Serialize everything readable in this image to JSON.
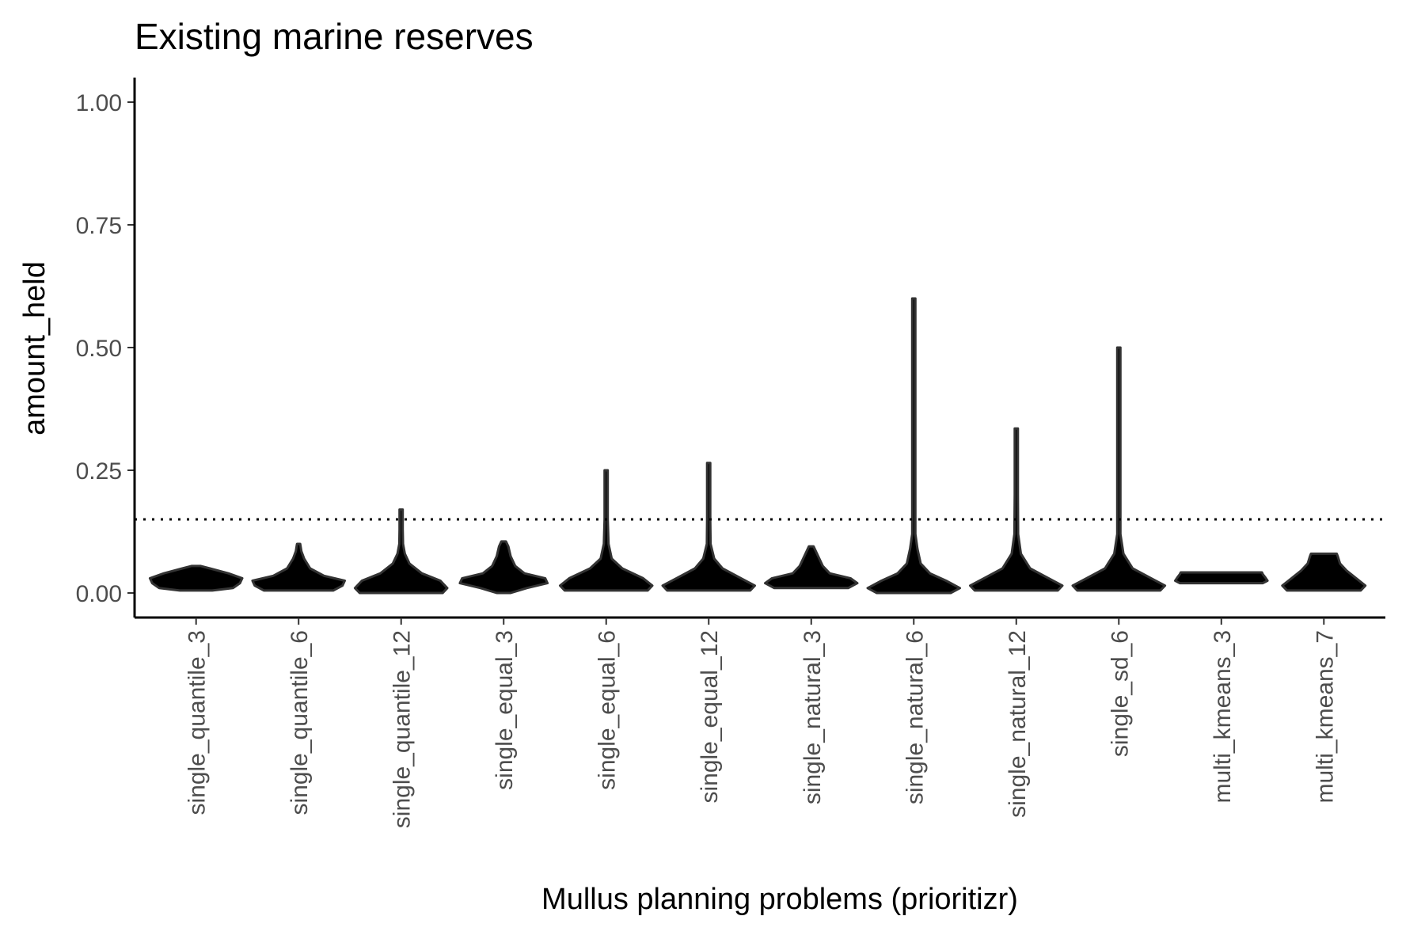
{
  "chart_data": {
    "type": "violin",
    "title": "Existing marine reserves",
    "xlabel": "Mullus planning problems (prioritizr)",
    "ylabel": "amount_held",
    "ylim": [
      -0.05,
      1.05
    ],
    "yticks": [
      0.0,
      0.25,
      0.5,
      0.75,
      1.0
    ],
    "ytick_labels": [
      "0.00",
      "0.25",
      "0.50",
      "0.75",
      "1.00"
    ],
    "reference_line": {
      "y": 0.15,
      "style": "dotted"
    },
    "grid": false,
    "legend": "none",
    "fill_color": "#000000",
    "outline_color": "#333333",
    "categories": [
      "single_quantile_3",
      "single_quantile_6",
      "single_quantile_12",
      "single_equal_3",
      "single_equal_6",
      "single_equal_12",
      "single_natural_3",
      "single_natural_6",
      "single_natural_12",
      "single_sd_6",
      "multi_kmeans_3",
      "multi_kmeans_7"
    ],
    "violins": [
      {
        "category": "single_quantile_3",
        "min": 0.005,
        "max": 0.055,
        "density": [
          [
            0.005,
            0.35
          ],
          [
            0.01,
            0.8
          ],
          [
            0.02,
            0.95
          ],
          [
            0.03,
            1.0
          ],
          [
            0.04,
            0.7
          ],
          [
            0.05,
            0.3
          ],
          [
            0.055,
            0.1
          ]
        ]
      },
      {
        "category": "single_quantile_6",
        "min": 0.005,
        "max": 0.1,
        "density": [
          [
            0.005,
            0.75
          ],
          [
            0.015,
            0.95
          ],
          [
            0.025,
            1.0
          ],
          [
            0.035,
            0.55
          ],
          [
            0.05,
            0.25
          ],
          [
            0.07,
            0.12
          ],
          [
            0.085,
            0.06
          ],
          [
            0.1,
            0.03
          ]
        ]
      },
      {
        "category": "single_quantile_12",
        "min": 0.0,
        "max": 0.17,
        "density": [
          [
            0.0,
            0.9
          ],
          [
            0.01,
            1.0
          ],
          [
            0.025,
            0.85
          ],
          [
            0.04,
            0.45
          ],
          [
            0.06,
            0.18
          ],
          [
            0.08,
            0.08
          ],
          [
            0.1,
            0.04
          ],
          [
            0.13,
            0.02
          ],
          [
            0.17,
            0.01
          ]
        ]
      },
      {
        "category": "single_equal_3",
        "min": 0.0,
        "max": 0.105,
        "density": [
          [
            0.0,
            0.15
          ],
          [
            0.01,
            0.5
          ],
          [
            0.02,
            0.95
          ],
          [
            0.03,
            0.9
          ],
          [
            0.04,
            0.45
          ],
          [
            0.055,
            0.25
          ],
          [
            0.075,
            0.15
          ],
          [
            0.095,
            0.1
          ],
          [
            0.105,
            0.05
          ]
        ]
      },
      {
        "category": "single_equal_6",
        "min": 0.005,
        "max": 0.25,
        "density": [
          [
            0.005,
            0.9
          ],
          [
            0.015,
            1.0
          ],
          [
            0.03,
            0.8
          ],
          [
            0.05,
            0.35
          ],
          [
            0.07,
            0.12
          ],
          [
            0.1,
            0.05
          ],
          [
            0.15,
            0.02
          ],
          [
            0.2,
            0.015
          ],
          [
            0.25,
            0.01
          ]
        ]
      },
      {
        "category": "single_equal_12",
        "min": 0.005,
        "max": 0.265,
        "density": [
          [
            0.005,
            0.9
          ],
          [
            0.015,
            1.0
          ],
          [
            0.03,
            0.7
          ],
          [
            0.05,
            0.3
          ],
          [
            0.07,
            0.12
          ],
          [
            0.1,
            0.04
          ],
          [
            0.15,
            0.02
          ],
          [
            0.22,
            0.012
          ],
          [
            0.265,
            0.01
          ]
        ]
      },
      {
        "category": "single_natural_3",
        "min": 0.01,
        "max": 0.095,
        "density": [
          [
            0.01,
            0.8
          ],
          [
            0.02,
            1.0
          ],
          [
            0.03,
            0.85
          ],
          [
            0.04,
            0.4
          ],
          [
            0.055,
            0.25
          ],
          [
            0.075,
            0.15
          ],
          [
            0.095,
            0.05
          ]
        ]
      },
      {
        "category": "single_natural_6",
        "min": 0.0,
        "max": 0.6,
        "density": [
          [
            0.0,
            0.8
          ],
          [
            0.01,
            1.0
          ],
          [
            0.025,
            0.7
          ],
          [
            0.04,
            0.35
          ],
          [
            0.06,
            0.15
          ],
          [
            0.09,
            0.08
          ],
          [
            0.12,
            0.02
          ],
          [
            0.3,
            0.012
          ],
          [
            0.6,
            0.008
          ]
        ]
      },
      {
        "category": "single_natural_12",
        "min": 0.005,
        "max": 0.335,
        "density": [
          [
            0.005,
            0.9
          ],
          [
            0.015,
            1.0
          ],
          [
            0.03,
            0.7
          ],
          [
            0.05,
            0.3
          ],
          [
            0.08,
            0.1
          ],
          [
            0.12,
            0.04
          ],
          [
            0.2,
            0.015
          ],
          [
            0.335,
            0.01
          ]
        ]
      },
      {
        "category": "single_sd_6",
        "min": 0.005,
        "max": 0.5,
        "density": [
          [
            0.005,
            0.9
          ],
          [
            0.015,
            1.0
          ],
          [
            0.03,
            0.7
          ],
          [
            0.05,
            0.3
          ],
          [
            0.08,
            0.1
          ],
          [
            0.12,
            0.03
          ],
          [
            0.2,
            0.015
          ],
          [
            0.5,
            0.01
          ]
        ]
      },
      {
        "category": "multi_kmeans_3",
        "min": 0.02,
        "max": 0.042,
        "density": [
          [
            0.02,
            0.9
          ],
          [
            0.025,
            1.0
          ],
          [
            0.032,
            0.95
          ],
          [
            0.038,
            0.9
          ],
          [
            0.042,
            0.88
          ]
        ]
      },
      {
        "category": "multi_kmeans_7",
        "min": 0.005,
        "max": 0.08,
        "density": [
          [
            0.005,
            0.8
          ],
          [
            0.015,
            0.9
          ],
          [
            0.03,
            0.7
          ],
          [
            0.045,
            0.5
          ],
          [
            0.06,
            0.35
          ],
          [
            0.075,
            0.3
          ],
          [
            0.08,
            0.28
          ]
        ]
      }
    ]
  }
}
